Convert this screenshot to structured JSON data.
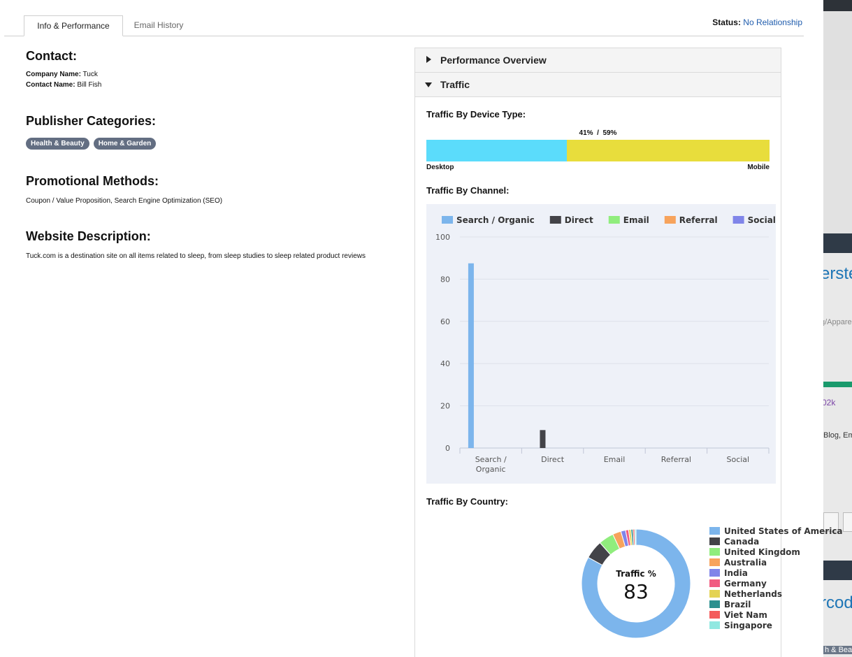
{
  "tabs": [
    {
      "label": "Info & Performance",
      "active": true
    },
    {
      "label": "Email History",
      "active": false
    }
  ],
  "status": {
    "label": "Status:",
    "value": "No Relationship"
  },
  "contact": {
    "heading": "Contact:",
    "company_label": "Company Name:",
    "company_value": "Tuck",
    "contact_label": "Contact Name:",
    "contact_value": "Bill Fish"
  },
  "publisher_categories": {
    "heading": "Publisher Categories:",
    "items": [
      "Health & Beauty",
      "Home & Garden"
    ]
  },
  "promotional_methods": {
    "heading": "Promotional Methods:",
    "text": "Coupon / Value Proposition, Search Engine Optimization (SEO)"
  },
  "website_description": {
    "heading": "Website Description:",
    "text": "Tuck.com is a destination site on all items related to sleep, from sleep studies to sleep related product reviews"
  },
  "accordion": {
    "performance_overview": "Performance Overview",
    "traffic": "Traffic"
  },
  "traffic": {
    "device_heading": "Traffic By Device Type:",
    "device_pct_text": "41%  /  59%",
    "desktop_label": "Desktop",
    "mobile_label": "Mobile",
    "desktop_fraction": 0.41,
    "channel_heading": "Traffic By Channel:",
    "country_heading": "Traffic By Country:"
  },
  "background_window": {
    "t1": "erste",
    "t2": "g/Appare",
    "t3": "02k",
    "t4": "Blog, Em",
    "t5": "rcod",
    "t6": "h & Beau"
  },
  "chart_data": [
    {
      "type": "bar",
      "title": "",
      "categories": [
        "Search / Organic",
        "Direct",
        "Email",
        "Referral",
        "Social"
      ],
      "category_lines": [
        [
          "Search /",
          "Organic"
        ],
        [
          "Direct"
        ],
        [
          "Email"
        ],
        [
          "Referral"
        ],
        [
          "Social"
        ]
      ],
      "series": [
        {
          "name": "Search / Organic",
          "color": "#7cb5ec",
          "values": [
            87.5,
            0,
            0,
            0,
            0
          ]
        },
        {
          "name": "Direct",
          "color": "#434348",
          "values": [
            0,
            8.5,
            0,
            0,
            0
          ]
        },
        {
          "name": "Email",
          "color": "#90ed7d",
          "values": [
            0,
            0,
            0,
            0,
            0
          ]
        },
        {
          "name": "Referral",
          "color": "#f7a35c",
          "values": [
            0,
            0,
            0,
            0,
            0
          ]
        },
        {
          "name": "Social",
          "color": "#8085e9",
          "values": [
            0,
            0,
            0,
            0,
            0
          ]
        }
      ],
      "ylim": [
        0,
        100
      ],
      "yticks": [
        0,
        20,
        40,
        60,
        80,
        100
      ],
      "grid": true,
      "legend": "top"
    },
    {
      "type": "pie",
      "title": "",
      "center_label": "Traffic %",
      "center_value": "83",
      "legend": "right",
      "slices": [
        {
          "name": "United States of America",
          "value": 83,
          "color": "#7cb5ec"
        },
        {
          "name": "Canada",
          "value": 5.5,
          "color": "#434348"
        },
        {
          "name": "United Kingdom",
          "value": 4.5,
          "color": "#90ed7d"
        },
        {
          "name": "Australia",
          "value": 2.5,
          "color": "#f7a35c"
        },
        {
          "name": "India",
          "value": 1.4,
          "color": "#8085e9"
        },
        {
          "name": "Germany",
          "value": 0.9,
          "color": "#f15c80"
        },
        {
          "name": "Netherlands",
          "value": 0.7,
          "color": "#e4d354"
        },
        {
          "name": "Brazil",
          "value": 0.6,
          "color": "#2b908f"
        },
        {
          "name": "Viet Nam",
          "value": 0.5,
          "color": "#f45b5b"
        },
        {
          "name": "Singapore",
          "value": 0.4,
          "color": "#91e8e1"
        }
      ]
    }
  ]
}
